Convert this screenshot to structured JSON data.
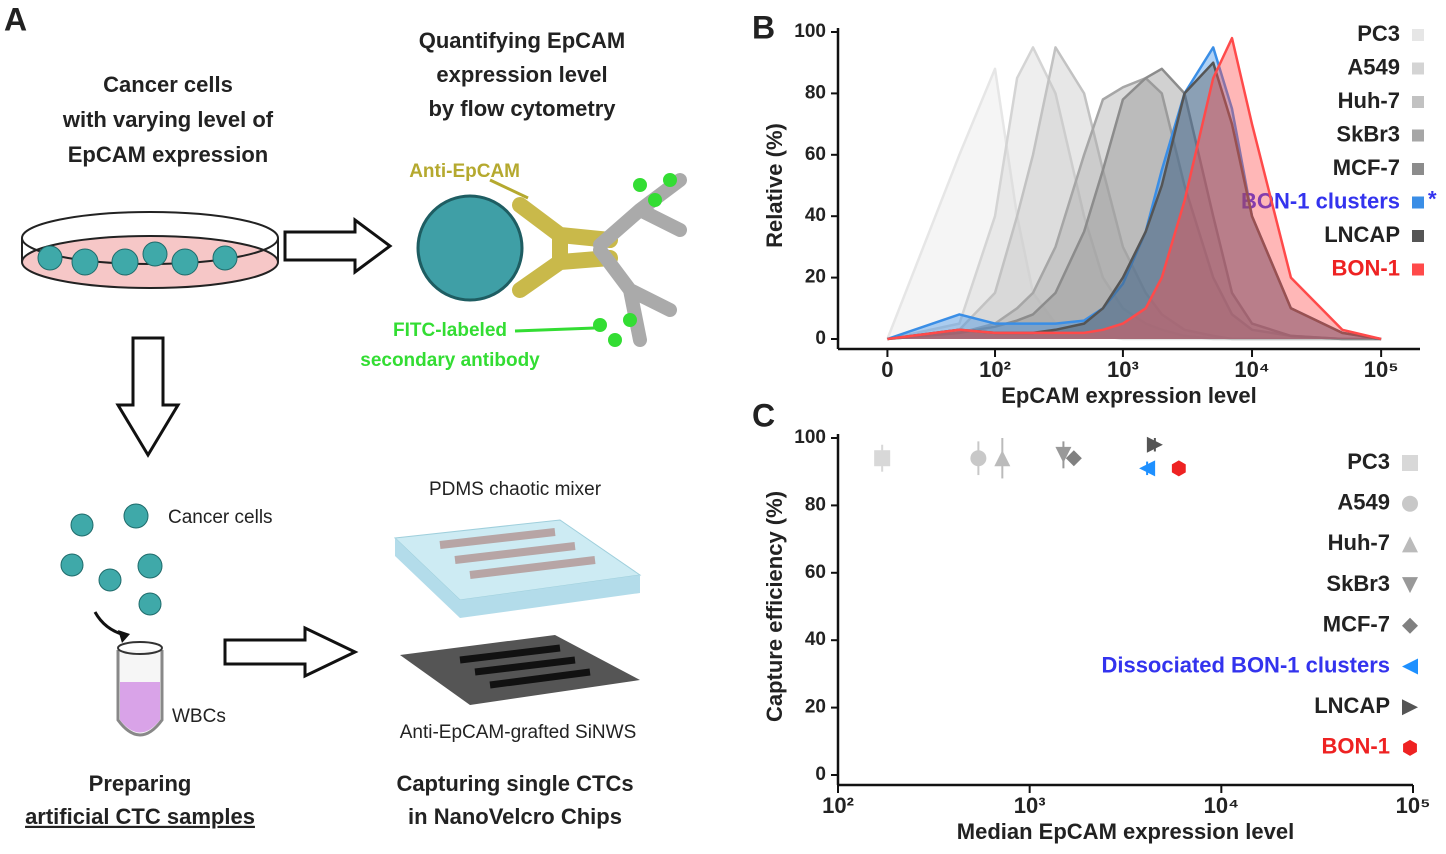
{
  "panel_a": {
    "label": "A",
    "cells_title": [
      "Cancer cells",
      "with varying level of",
      "EpCAM expression"
    ],
    "flow_title": [
      "Quantifying EpCAM",
      "expression level",
      "by flow cytometry"
    ],
    "anti_epcam": "Anti-EpCAM",
    "fitc": [
      "FITC-labeled",
      "secondary antibody"
    ],
    "cancer_cells": "Cancer cells",
    "wbcs": "WBCs",
    "pdms": "PDMS chaotic mixer",
    "sinws": "Anti-EpCAM-grafted SiNWS",
    "preparing": [
      "Preparing",
      "artificial CTC samples"
    ],
    "capturing": [
      "Capturing single CTCs",
      "in NanoVelcro Chips"
    ]
  },
  "chart_data": [
    {
      "type": "area",
      "panel": "B",
      "x_label": "EpCAM expression level",
      "y_label": "Relative (%)",
      "xscale": "asinh",
      "xlim": [
        -30,
        200000
      ],
      "ylim": [
        0,
        100
      ],
      "xticks": [
        0,
        {
          "value": 100,
          "label": "10²"
        },
        {
          "value": 1000,
          "label": "10³"
        },
        {
          "value": 10000,
          "label": "10⁴"
        },
        {
          "value": 100000,
          "label": "10⁵"
        }
      ],
      "yticks": [
        0,
        20,
        40,
        60,
        80,
        100
      ],
      "x": [
        0,
        50,
        100,
        150,
        200,
        300,
        500,
        700,
        1000,
        1500,
        2000,
        3000,
        5000,
        7000,
        10000,
        20000,
        50000,
        100000
      ],
      "series": [
        {
          "name": "PC3",
          "color": "#e6e6e6",
          "values": [
            0,
            60,
            88,
            40,
            15,
            5,
            2,
            1,
            0,
            0,
            0,
            0,
            0,
            0,
            0,
            0,
            0,
            0
          ]
        },
        {
          "name": "A549",
          "color": "#d4d4d4",
          "values": [
            0,
            5,
            40,
            85,
            95,
            80,
            40,
            20,
            10,
            5,
            3,
            1,
            0,
            0,
            0,
            0,
            0,
            0
          ]
        },
        {
          "name": "Huh-7",
          "color": "#c2c2c2",
          "values": [
            0,
            3,
            15,
            40,
            60,
            95,
            80,
            55,
            30,
            15,
            8,
            3,
            1,
            0,
            0,
            0,
            0,
            0
          ]
        },
        {
          "name": "SkBr3",
          "color": "#a6a6a6",
          "values": [
            0,
            2,
            5,
            10,
            15,
            30,
            60,
            78,
            82,
            85,
            80,
            50,
            20,
            8,
            3,
            1,
            0,
            0
          ]
        },
        {
          "name": "MCF-7",
          "color": "#8c8c8c",
          "values": [
            0,
            2,
            4,
            6,
            8,
            15,
            35,
            55,
            78,
            85,
            88,
            80,
            40,
            15,
            5,
            1,
            0,
            0
          ]
        },
        {
          "name": "BON-1 clusters",
          "color": "#3a8ee6",
          "label_color": "#3333ee",
          "annotation": "*",
          "values": [
            0,
            8,
            5,
            5,
            5,
            5,
            6,
            10,
            18,
            35,
            55,
            80,
            95,
            75,
            40,
            10,
            2,
            0
          ]
        },
        {
          "name": "LNCAP",
          "color": "#555555",
          "values": [
            0,
            3,
            2,
            2,
            2,
            3,
            5,
            10,
            20,
            35,
            50,
            80,
            90,
            70,
            40,
            10,
            2,
            0
          ]
        },
        {
          "name": "BON-1",
          "color": "#ff4a4a",
          "label_color": "#ee2222",
          "values": [
            0,
            3,
            2,
            2,
            2,
            2,
            2,
            3,
            5,
            10,
            20,
            45,
            85,
            98,
            70,
            20,
            3,
            0
          ]
        }
      ]
    },
    {
      "type": "scatter",
      "panel": "C",
      "x_label": "Median EpCAM expression level",
      "y_label": "Capture efficiency (%)",
      "xscale": "log",
      "xlim": [
        100,
        100000
      ],
      "ylim": [
        0,
        100
      ],
      "xticks": [
        {
          "value": 100,
          "label": "10²"
        },
        {
          "value": 1000,
          "label": "10³"
        },
        {
          "value": 10000,
          "label": "10⁴"
        },
        {
          "value": 100000,
          "label": "10⁵"
        }
      ],
      "yticks": [
        0,
        20,
        40,
        60,
        80,
        100
      ],
      "series": [
        {
          "name": "PC3",
          "color": "#d8d8d8",
          "marker": "square",
          "x": [
            170
          ],
          "values": [
            94
          ],
          "errors": [
            4
          ]
        },
        {
          "name": "A549",
          "color": "#c8c8c8",
          "marker": "circle",
          "x": [
            540
          ],
          "values": [
            94
          ],
          "errors": [
            5
          ]
        },
        {
          "name": "Huh-7",
          "color": "#bbbbbb",
          "marker": "triangle-up",
          "x": [
            720
          ],
          "values": [
            94
          ],
          "errors": [
            6
          ]
        },
        {
          "name": "SkBr3",
          "color": "#999999",
          "marker": "triangle-down",
          "x": [
            1500
          ],
          "values": [
            95
          ],
          "errors": [
            4
          ]
        },
        {
          "name": "MCF-7",
          "color": "#808080",
          "marker": "diamond",
          "x": [
            1700
          ],
          "values": [
            94
          ],
          "errors": [
            1
          ]
        },
        {
          "name": "Dissociated BON-1 clusters",
          "color": "#1e90ff",
          "label_color": "#3333ee",
          "marker": "triangle-left",
          "x": [
            4100
          ],
          "values": [
            91
          ],
          "errors": [
            2
          ]
        },
        {
          "name": "LNCAP",
          "color": "#555555",
          "marker": "triangle-right",
          "x": [
            4500
          ],
          "values": [
            98
          ],
          "errors": [
            2
          ]
        },
        {
          "name": "BON-1",
          "color": "#ee2222",
          "label_color": "#ee2222",
          "marker": "hexagon",
          "x": [
            6000
          ],
          "values": [
            91
          ],
          "errors": [
            1.5
          ]
        }
      ]
    }
  ]
}
